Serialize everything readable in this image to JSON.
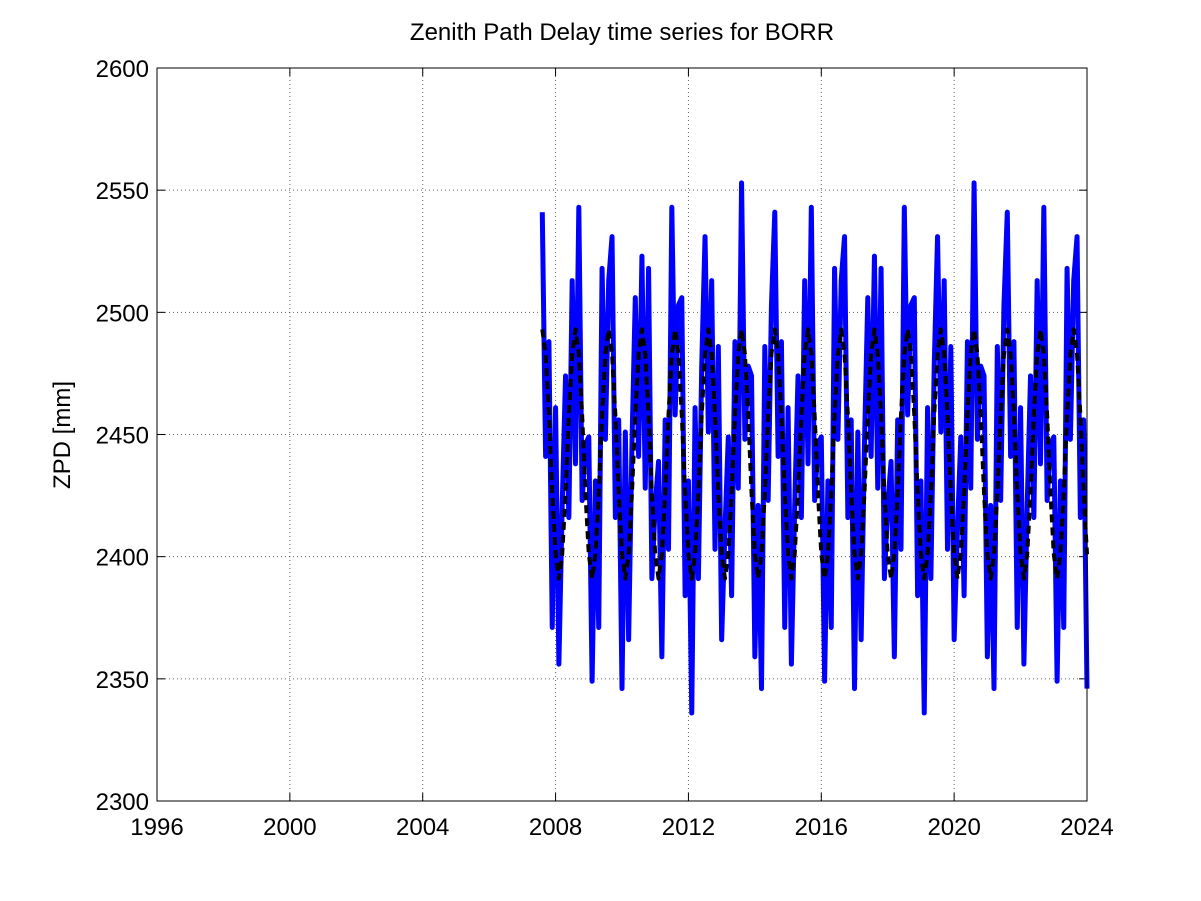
{
  "chart_data": {
    "type": "line",
    "title": "Zenith Path Delay time series for BORR",
    "ylabel": "ZPD [mm]",
    "xlim": [
      1996,
      2024
    ],
    "xticks": [
      1996,
      2000,
      2004,
      2008,
      2012,
      2016,
      2020,
      2024
    ],
    "ylim": [
      2300,
      2600
    ],
    "yticks": [
      2300,
      2350,
      2400,
      2450,
      2500,
      2550,
      2600
    ],
    "grid": true,
    "x": [
      2007.6,
      2007.7,
      2007.8,
      2007.9,
      2008.0,
      2008.1,
      2008.2,
      2008.3,
      2008.4,
      2008.5,
      2008.6,
      2008.7,
      2008.8,
      2008.9,
      2009.0,
      2009.1,
      2009.2,
      2009.3,
      2009.4,
      2009.5,
      2009.6,
      2009.7,
      2009.8,
      2009.9,
      2010.0,
      2010.1,
      2010.2,
      2010.3,
      2010.4,
      2010.5,
      2010.6,
      2010.7,
      2010.8,
      2010.9,
      2011.0,
      2011.1,
      2011.2,
      2011.3,
      2011.4,
      2011.5,
      2011.6,
      2011.7,
      2011.8,
      2011.9,
      2012.0,
      2012.1,
      2012.2,
      2012.3,
      2012.4,
      2012.5,
      2012.6,
      2012.7,
      2012.8,
      2012.9,
      2013.0,
      2013.1,
      2013.2,
      2013.3,
      2013.4,
      2013.5,
      2013.6,
      2013.7,
      2013.8,
      2013.9,
      2014.0,
      2014.1,
      2014.2,
      2014.3,
      2014.4,
      2014.5,
      2014.6,
      2014.7,
      2014.8,
      2014.9,
      2015.0,
      2015.1,
      2015.2,
      2015.3,
      2015.4,
      2015.5,
      2015.6,
      2015.7,
      2015.8,
      2015.9,
      2016.0,
      2016.1,
      2016.2,
      2016.3,
      2016.4,
      2016.5,
      2016.6,
      2016.7,
      2016.8,
      2016.9,
      2017.0,
      2017.1,
      2017.2,
      2017.3,
      2017.4,
      2017.5,
      2017.6,
      2017.7,
      2017.8,
      2017.9,
      2018.0,
      2018.1,
      2018.2,
      2018.3,
      2018.4,
      2018.5,
      2018.6,
      2018.7,
      2018.8,
      2018.9,
      2019.0,
      2019.1,
      2019.2,
      2019.3,
      2019.4,
      2019.5,
      2019.6,
      2019.7,
      2019.8,
      2019.9,
      2020.0,
      2020.1,
      2020.2,
      2020.3,
      2020.4,
      2020.5,
      2020.6,
      2020.7,
      2020.8,
      2020.9,
      2021.0,
      2021.1,
      2021.2,
      2021.3,
      2021.4,
      2021.5,
      2021.6,
      2021.7,
      2021.8,
      2021.9,
      2022.0,
      2022.1,
      2022.2,
      2022.3,
      2022.4,
      2022.5,
      2022.6,
      2022.7,
      2022.8,
      2022.9,
      2023.0,
      2023.1,
      2023.2,
      2023.3,
      2023.4,
      2023.5,
      2023.6,
      2023.7,
      2023.8,
      2023.9,
      2024.0
    ],
    "series": [
      {
        "color": "#0000ff",
        "linestyle": "solid",
        "values": [
          2541,
          2441,
          2488,
          2371,
          2461,
          2356,
          2421,
          2474,
          2416,
          2513,
          2438,
          2543,
          2423,
          2446,
          2449,
          2349,
          2431,
          2371,
          2518,
          2448,
          2513,
          2531,
          2416,
          2456,
          2346,
          2451,
          2366,
          2446,
          2506,
          2441,
          2523,
          2428,
          2518,
          2391,
          2421,
          2439,
          2359,
          2456,
          2403,
          2543,
          2458,
          2503,
          2506,
          2384,
          2431,
          2336,
          2461,
          2391,
          2478,
          2531,
          2451,
          2513,
          2403,
          2486,
          2366,
          2411,
          2449,
          2384,
          2488,
          2428,
          2553,
          2448,
          2478,
          2474,
          2359,
          2421,
          2346,
          2486,
          2423,
          2503,
          2541,
          2441,
          2488,
          2371,
          2461,
          2356,
          2421,
          2474,
          2416,
          2513,
          2438,
          2543,
          2423,
          2446,
          2449,
          2349,
          2431,
          2371,
          2518,
          2448,
          2513,
          2531,
          2416,
          2456,
          2346,
          2451,
          2366,
          2446,
          2506,
          2441,
          2523,
          2428,
          2518,
          2391,
          2421,
          2439,
          2359,
          2456,
          2403,
          2543,
          2458,
          2503,
          2506,
          2384,
          2431,
          2336,
          2461,
          2391,
          2478,
          2531,
          2451,
          2513,
          2403,
          2486,
          2366,
          2411,
          2449,
          2384,
          2488,
          2428,
          2553,
          2448,
          2478,
          2474,
          2359,
          2421,
          2346,
          2486,
          2423,
          2503,
          2541,
          2441,
          2488,
          2371,
          2461,
          2356,
          2421,
          2474,
          2416,
          2513,
          2438,
          2543,
          2423,
          2446,
          2449,
          2349,
          2431,
          2371,
          2518,
          2448,
          2513,
          2531,
          2416,
          2456,
          2346
        ]
      },
      {
        "color": "#000000",
        "linestyle": "dashed",
        "values": [
          2493,
          2483,
          2458,
          2426,
          2401,
          2391,
          2401,
          2426,
          2458,
          2483,
          2493,
          2483,
          2458,
          2426,
          2401,
          2391,
          2401,
          2426,
          2458,
          2483,
          2493,
          2483,
          2458,
          2426,
          2401,
          2391,
          2401,
          2426,
          2458,
          2483,
          2493,
          2483,
          2458,
          2426,
          2401,
          2391,
          2401,
          2426,
          2458,
          2483,
          2493,
          2483,
          2458,
          2426,
          2401,
          2391,
          2401,
          2426,
          2458,
          2483,
          2493,
          2483,
          2458,
          2426,
          2401,
          2391,
          2401,
          2426,
          2458,
          2483,
          2493,
          2483,
          2458,
          2426,
          2401,
          2391,
          2401,
          2426,
          2458,
          2483,
          2493,
          2483,
          2458,
          2426,
          2401,
          2391,
          2401,
          2426,
          2458,
          2483,
          2493,
          2483,
          2458,
          2426,
          2401,
          2391,
          2401,
          2426,
          2458,
          2483,
          2493,
          2483,
          2458,
          2426,
          2401,
          2391,
          2401,
          2426,
          2458,
          2483,
          2493,
          2483,
          2458,
          2426,
          2401,
          2391,
          2401,
          2426,
          2458,
          2483,
          2493,
          2483,
          2458,
          2426,
          2401,
          2391,
          2401,
          2426,
          2458,
          2483,
          2493,
          2483,
          2458,
          2426,
          2401,
          2391,
          2401,
          2426,
          2458,
          2483,
          2493,
          2483,
          2458,
          2426,
          2401,
          2391,
          2401,
          2426,
          2458,
          2483,
          2493,
          2483,
          2458,
          2426,
          2401,
          2391,
          2401,
          2426,
          2458,
          2483,
          2493,
          2483,
          2458,
          2426,
          2401,
          2391,
          2401,
          2426,
          2458,
          2483,
          2493,
          2483,
          2458,
          2426,
          2401
        ]
      }
    ]
  }
}
